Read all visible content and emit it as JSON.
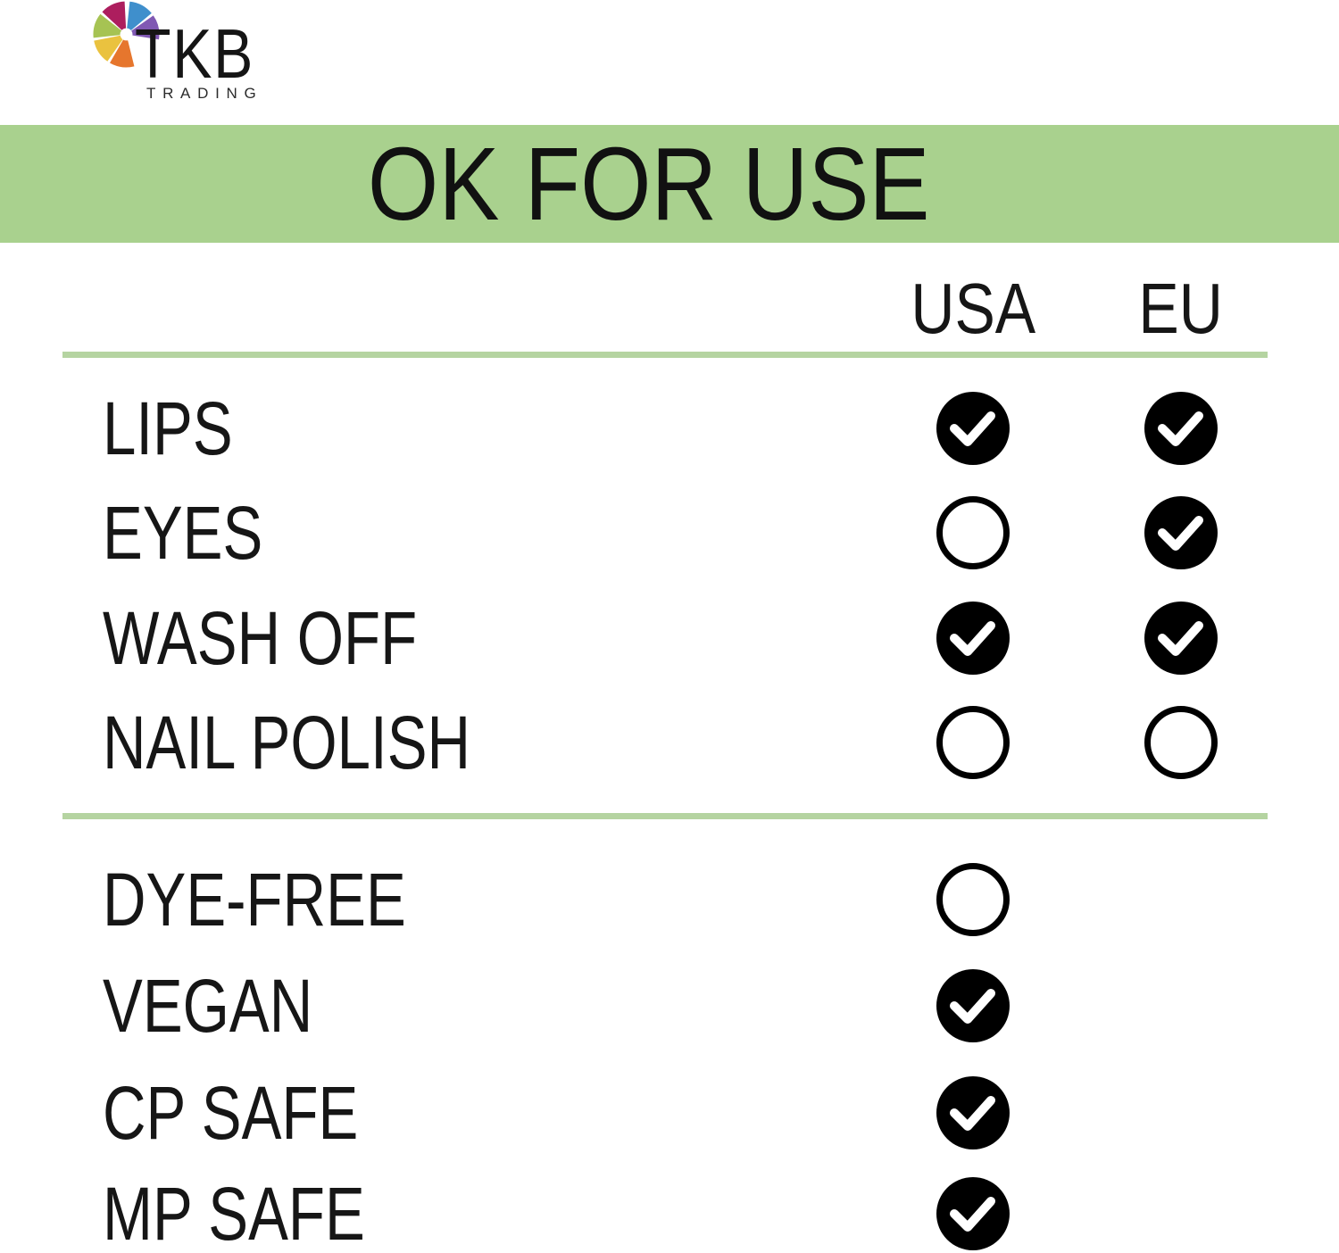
{
  "logo": {
    "brand": "TKB",
    "subtitle": "TRADING",
    "wedge_colors": [
      "#3f8fcc",
      "#8059b3",
      "#e6762d",
      "#eac23f",
      "#a6c353",
      "#ad1e5e"
    ]
  },
  "banner": {
    "title": "OK FOR USE",
    "bg_color": "#a9d18e"
  },
  "divider_color": "#b5d4a1",
  "status_colors": {
    "checked_fill": "#000000",
    "check_mark": "#ffffff",
    "unchecked_ring": "#000000"
  },
  "chart_data": {
    "type": "table",
    "title": "OK FOR USE",
    "columns": [
      "USA",
      "EU"
    ],
    "rows": [
      {
        "label": "LIPS",
        "USA": true,
        "EU": true
      },
      {
        "label": "EYES",
        "USA": false,
        "EU": true
      },
      {
        "label": "WASH OFF",
        "USA": true,
        "EU": true
      },
      {
        "label": "NAIL POLISH",
        "USA": false,
        "EU": false
      }
    ],
    "attributes": [
      {
        "label": "DYE-FREE",
        "checked": false
      },
      {
        "label": "VEGAN",
        "checked": true
      },
      {
        "label": "CP SAFE",
        "checked": true
      },
      {
        "label": "MP SAFE",
        "checked": true
      }
    ],
    "legend_note": "filled black circle with white check = yes; empty outlined circle = no"
  }
}
